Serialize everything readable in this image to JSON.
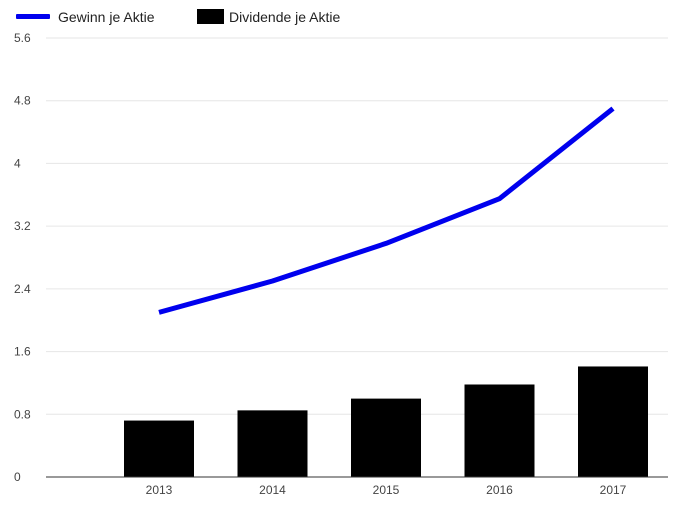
{
  "chart_data": {
    "type": "bar",
    "categories": [
      "2013",
      "2014",
      "2015",
      "2016",
      "2017"
    ],
    "series": [
      {
        "name": "Gewinn je Aktie",
        "kind": "line",
        "values": [
          2.1,
          2.5,
          2.98,
          3.55,
          4.7
        ],
        "color": "#0000ee"
      },
      {
        "name": "Dividende je Aktie",
        "kind": "bar",
        "values": [
          0.72,
          0.85,
          1.0,
          1.18,
          1.41
        ],
        "color": "#000000"
      }
    ],
    "ylim": [
      0,
      5.6
    ],
    "yticks": [
      "0",
      "0.8",
      "1.6",
      "2.4",
      "3.2",
      "4",
      "4.8",
      "5.6"
    ],
    "grid": true,
    "legend_position": "top-left",
    "title": "",
    "xlabel": "",
    "ylabel": ""
  }
}
